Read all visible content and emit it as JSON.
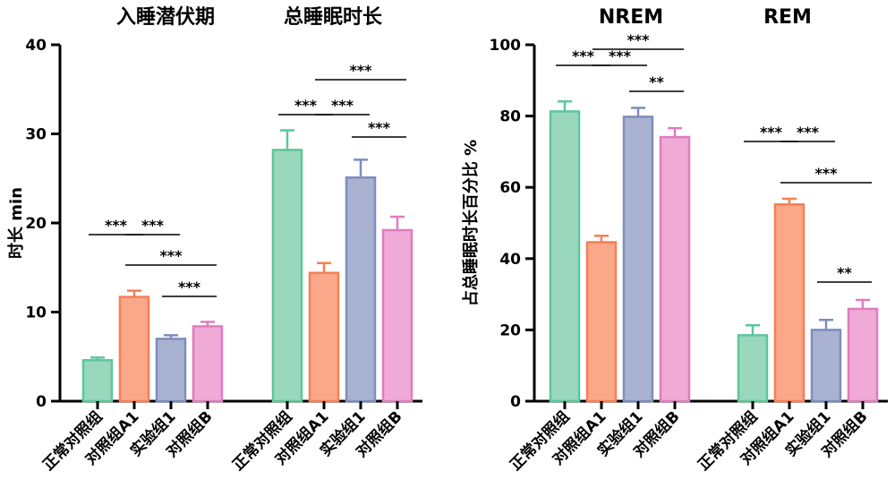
{
  "chart_data": [
    {
      "type": "bar",
      "ylabel": "时长 min",
      "ylim": [
        0,
        40
      ],
      "yticks": [
        0,
        10,
        20,
        30,
        40
      ],
      "groups": [
        {
          "title": "入睡潜伏期",
          "categories": [
            "正常对照组",
            "对照组A1",
            "实验组1",
            "对照组B"
          ],
          "values": [
            4.6,
            11.7,
            7.0,
            8.4
          ],
          "errors": [
            0.3,
            0.7,
            0.4,
            0.5
          ],
          "significance": [
            {
              "from": 0,
              "to": 1,
              "label": "***"
            },
            {
              "from": 1,
              "to": 2,
              "label": "***"
            },
            {
              "from": 1,
              "to": 3,
              "label": "***"
            },
            {
              "from": 2,
              "to": 3,
              "label": "***"
            }
          ]
        },
        {
          "title": "总睡眠时长",
          "categories": [
            "正常对照组",
            "对照组A1",
            "实验组1",
            "对照组B"
          ],
          "values": [
            28.2,
            14.4,
            25.1,
            19.2
          ],
          "errors": [
            2.2,
            1.1,
            2.0,
            1.5
          ],
          "significance": [
            {
              "from": 0,
              "to": 1,
              "label": "***"
            },
            {
              "from": 1,
              "to": 2,
              "label": "***"
            },
            {
              "from": 1,
              "to": 3,
              "label": "***"
            },
            {
              "from": 2,
              "to": 3,
              "label": "***"
            }
          ]
        }
      ]
    },
    {
      "type": "bar",
      "ylabel": "占总睡眠时长百分比 %",
      "ylim": [
        0,
        100
      ],
      "yticks": [
        0,
        20,
        40,
        60,
        80,
        100
      ],
      "groups": [
        {
          "title": "NREM",
          "categories": [
            "正常对照组",
            "对照组A1",
            "实验组1",
            "对照组B"
          ],
          "values": [
            81.3,
            44.6,
            79.8,
            74.1
          ],
          "errors": [
            2.8,
            1.8,
            2.5,
            2.5
          ],
          "significance": [
            {
              "from": 0,
              "to": 1,
              "label": "***"
            },
            {
              "from": 1,
              "to": 2,
              "label": "***"
            },
            {
              "from": 1,
              "to": 3,
              "label": "***"
            },
            {
              "from": 2,
              "to": 3,
              "label": "**"
            }
          ]
        },
        {
          "title": "REM",
          "categories": [
            "正常对照组",
            "对照组A1",
            "实验组1",
            "对照组B"
          ],
          "values": [
            18.5,
            55.2,
            20.0,
            25.9
          ],
          "errors": [
            2.8,
            1.6,
            2.8,
            2.5
          ],
          "significance": [
            {
              "from": 0,
              "to": 1,
              "label": "***"
            },
            {
              "from": 1,
              "to": 2,
              "label": "***"
            },
            {
              "from": 1,
              "to": 3,
              "label": "***"
            },
            {
              "from": 2,
              "to": 3,
              "label": "**"
            }
          ]
        }
      ]
    }
  ],
  "colors": {
    "fills": [
      "#9ad8bd",
      "#fba78a",
      "#a9b2d1",
      "#efaad5"
    ],
    "strokes": [
      "#5cc69a",
      "#f67f52",
      "#7f8dbd",
      "#df7cc0"
    ]
  }
}
